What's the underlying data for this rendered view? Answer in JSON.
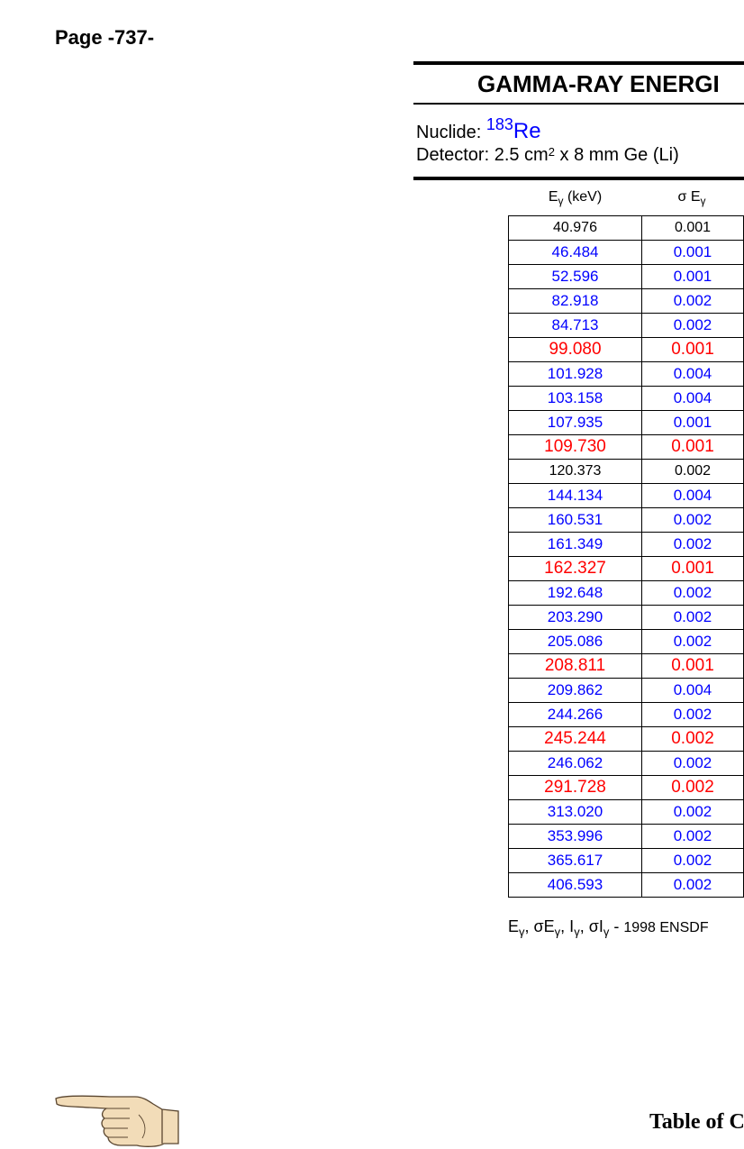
{
  "page": {
    "number_label": "Page -737-"
  },
  "header": {
    "title": "GAMMA-RAY ENERGI",
    "nuclide_label": "Nuclide:",
    "nuclide_mass": "183",
    "nuclide_symbol": "Re",
    "detector_prefix": "Detector: 2.5 cm",
    "detector_sup": "2",
    "detector_suffix": " x 8 mm Ge (Li)"
  },
  "table": {
    "columns": [
      {
        "symbol": "E",
        "sub": "γ",
        "unit": " (keV)"
      },
      {
        "symbol": "σ E",
        "sub": "γ",
        "unit": ""
      }
    ],
    "rows": [
      {
        "energy": "40.976",
        "sigma": "0.001",
        "color": "black"
      },
      {
        "energy": "46.484",
        "sigma": "0.001",
        "color": "blue"
      },
      {
        "energy": "52.596",
        "sigma": "0.001",
        "color": "blue"
      },
      {
        "energy": "82.918",
        "sigma": "0.002",
        "color": "blue"
      },
      {
        "energy": "84.713",
        "sigma": "0.002",
        "color": "blue"
      },
      {
        "energy": "99.080",
        "sigma": "0.001",
        "color": "red"
      },
      {
        "energy": "101.928",
        "sigma": "0.004",
        "color": "blue"
      },
      {
        "energy": "103.158",
        "sigma": "0.004",
        "color": "blue"
      },
      {
        "energy": "107.935",
        "sigma": "0.001",
        "color": "blue"
      },
      {
        "energy": "109.730",
        "sigma": "0.001",
        "color": "red"
      },
      {
        "energy": "120.373",
        "sigma": "0.002",
        "color": "black"
      },
      {
        "energy": "144.134",
        "sigma": "0.004",
        "color": "blue"
      },
      {
        "energy": "160.531",
        "sigma": "0.002",
        "color": "blue"
      },
      {
        "energy": "161.349",
        "sigma": "0.002",
        "color": "blue"
      },
      {
        "energy": "162.327",
        "sigma": "0.001",
        "color": "red"
      },
      {
        "energy": "192.648",
        "sigma": "0.002",
        "color": "blue"
      },
      {
        "energy": "203.290",
        "sigma": "0.002",
        "color": "blue"
      },
      {
        "energy": "205.086",
        "sigma": "0.002",
        "color": "blue"
      },
      {
        "energy": "208.811",
        "sigma": "0.001",
        "color": "red"
      },
      {
        "energy": "209.862",
        "sigma": "0.004",
        "color": "blue"
      },
      {
        "energy": "244.266",
        "sigma": "0.002",
        "color": "blue"
      },
      {
        "energy": "245.244",
        "sigma": "0.002",
        "color": "red"
      },
      {
        "energy": "246.062",
        "sigma": "0.002",
        "color": "blue"
      },
      {
        "energy": "291.728",
        "sigma": "0.002",
        "color": "red"
      },
      {
        "energy": "313.020",
        "sigma": "0.002",
        "color": "blue"
      },
      {
        "energy": "353.996",
        "sigma": "0.002",
        "color": "blue"
      },
      {
        "energy": "365.617",
        "sigma": "0.002",
        "color": "blue"
      },
      {
        "energy": "406.593",
        "sigma": "0.002",
        "color": "blue"
      }
    ]
  },
  "footnote": {
    "symbols": [
      {
        "sym": "E",
        "sub": "γ",
        "sep": ", "
      },
      {
        "sym": "σE",
        "sub": "γ",
        "sep": ", "
      },
      {
        "sym": "I",
        "sub": "γ",
        "sep": ", "
      },
      {
        "sym": "σI",
        "sub": "γ",
        "sep": " - "
      }
    ],
    "source": "1998 ENSDF"
  },
  "navigation": {
    "toc_label": "Table of C"
  },
  "colors": {
    "blue": "#0000ff",
    "red": "#ff0000",
    "black": "#000000"
  }
}
